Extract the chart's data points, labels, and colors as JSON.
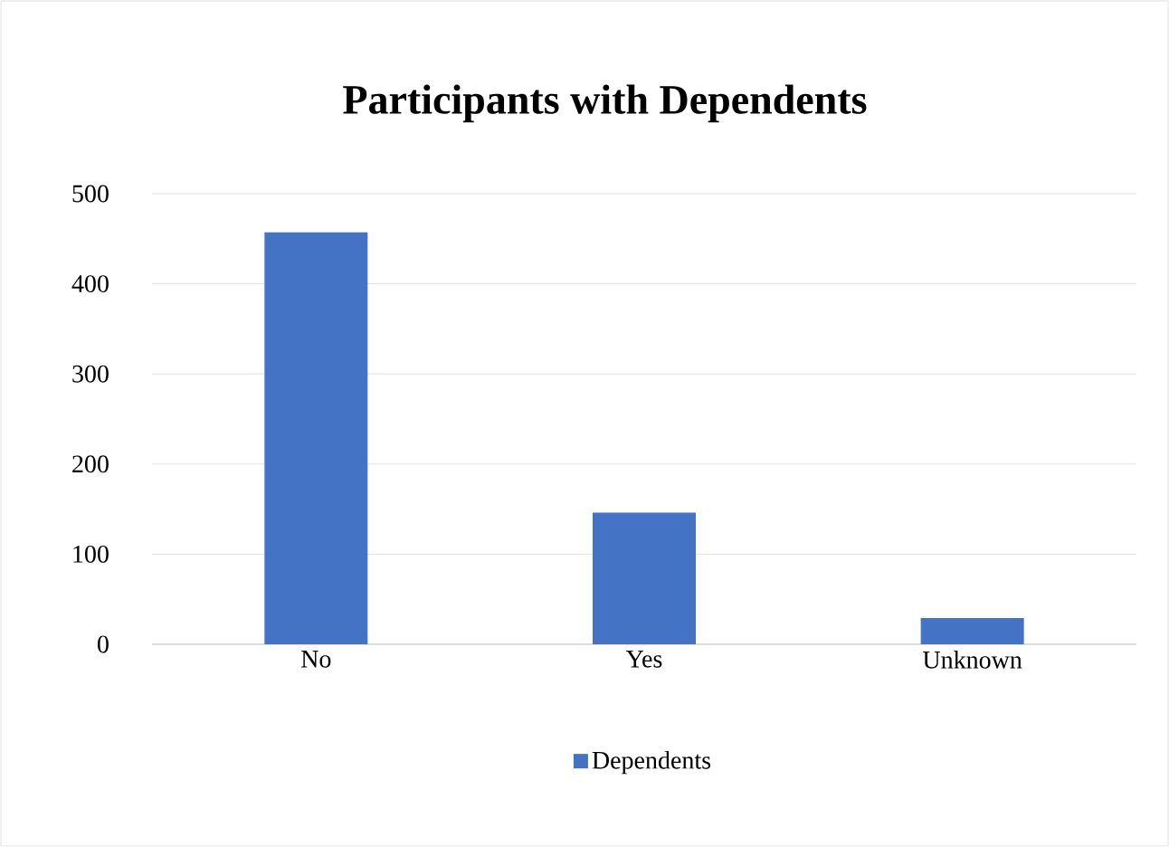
{
  "chart_data": {
    "type": "bar",
    "title": "Participants with Dependents",
    "categories": [
      "No",
      "Yes",
      "Unknown"
    ],
    "series": [
      {
        "name": "Dependents",
        "color": "#4472c4",
        "values": [
          457,
          146,
          29
        ]
      }
    ],
    "ylim": [
      0,
      500
    ],
    "yticks": [
      0,
      100,
      200,
      300,
      400,
      500
    ],
    "grid": "y",
    "legend": "bottom"
  }
}
